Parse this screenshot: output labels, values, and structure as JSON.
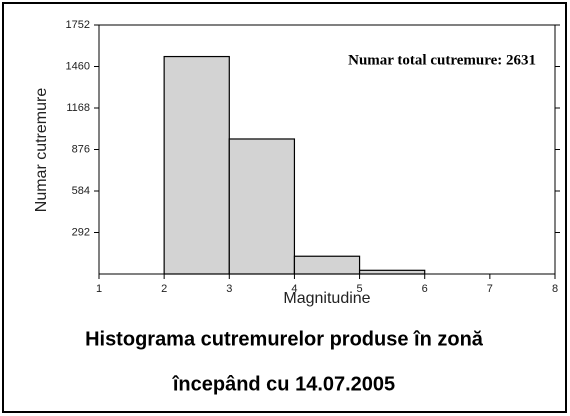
{
  "chart_data": {
    "type": "histogram",
    "xlabel": "Magnitudine",
    "ylabel": "Numar cutremure",
    "annotation": "Numar total cutremure: 2631",
    "bins": [
      1,
      2,
      3,
      4,
      5,
      6,
      7,
      8
    ],
    "values": [
      0,
      1530,
      950,
      125,
      26,
      0,
      0
    ],
    "color": "#d3d3d3",
    "xlim": [
      1,
      8
    ],
    "xticks": [
      1,
      2,
      3,
      4,
      5,
      6,
      7,
      8
    ],
    "ylim": [
      0,
      1752
    ],
    "yticks": [
      292,
      584,
      876,
      1168,
      1460,
      1752
    ]
  },
  "caption": [
    "Histograma cutremurelor produse în zonă",
    "începând cu 14.07.2005"
  ]
}
